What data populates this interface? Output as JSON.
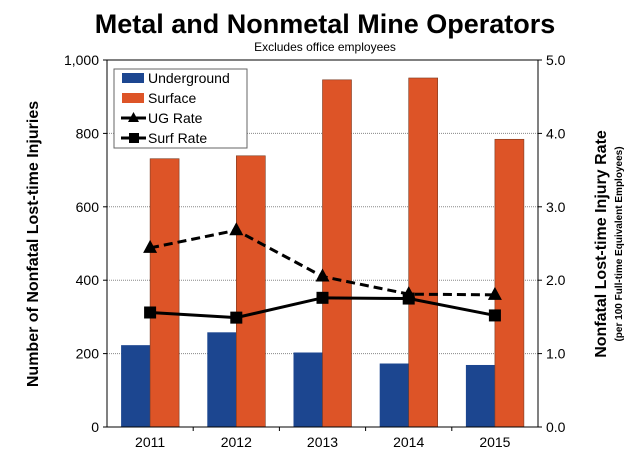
{
  "chart_data": {
    "type": "bar",
    "title": "Metal and Nonmetal Mine Operators",
    "subtitle": "Excludes office employees",
    "categories": [
      "2011",
      "2012",
      "2013",
      "2014",
      "2015"
    ],
    "ylabel": "Number of Nonfatal Lost-time Injuries",
    "ylabel_right": "Nonfatal Lost-time Injury Rate",
    "ylabel_right_sub": "(per 100 Full-time Equivalent Employees)",
    "ylim": [
      0,
      1000
    ],
    "ylim_right": [
      0,
      5.0
    ],
    "yticks": [
      "0",
      "200",
      "400",
      "600",
      "800",
      "1,000"
    ],
    "yticks_right": [
      "0.0",
      "1.0",
      "2.0",
      "3.0",
      "4.0",
      "5.0"
    ],
    "grid": true,
    "legend_position": "top-left",
    "series": [
      {
        "name": "Underground",
        "type": "bar",
        "axis": "left",
        "color": "#1c4690",
        "values": [
          223,
          258,
          203,
          173,
          169
        ]
      },
      {
        "name": "Surface",
        "type": "bar",
        "axis": "left",
        "color": "#dd5427",
        "values": [
          731,
          739,
          946,
          951,
          784
        ]
      },
      {
        "name": "UG Rate",
        "type": "line",
        "axis": "right",
        "marker": "triangle",
        "dash": "dashed",
        "color": "#000000",
        "values": [
          2.44,
          2.68,
          2.05,
          1.81,
          1.8
        ]
      },
      {
        "name": "Surf Rate",
        "type": "line",
        "axis": "right",
        "marker": "square",
        "dash": "solid",
        "color": "#000000",
        "values": [
          1.56,
          1.49,
          1.76,
          1.75,
          1.52
        ]
      }
    ]
  }
}
